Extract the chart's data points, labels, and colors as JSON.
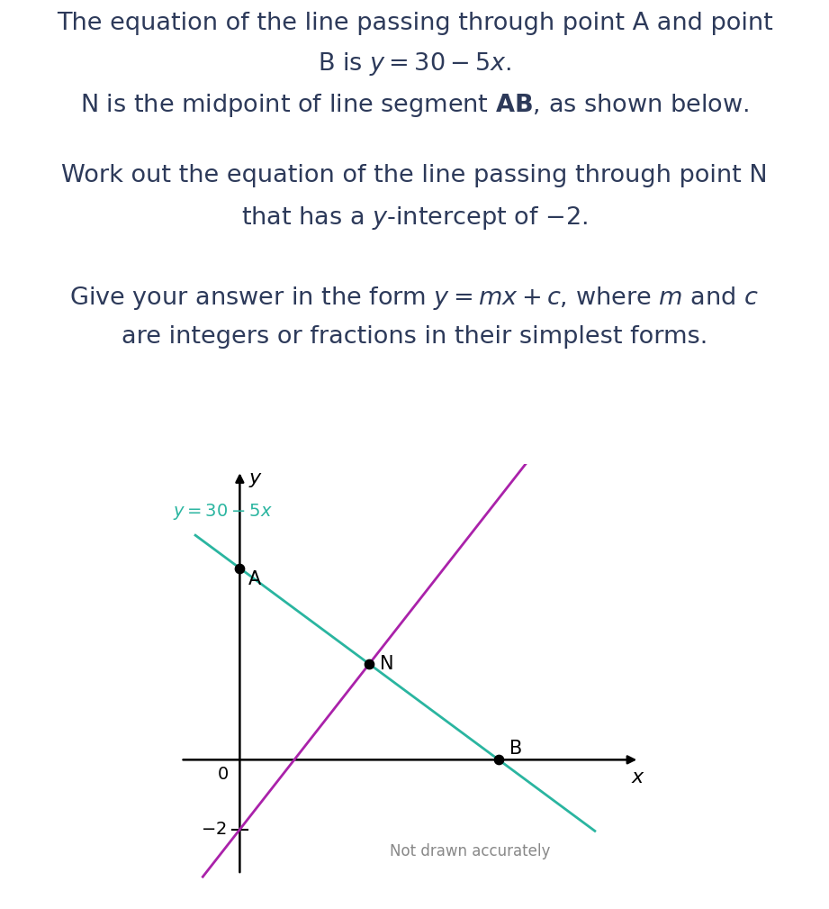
{
  "bg_color": "#ffffff",
  "text_color": "#2d3a5a",
  "teal_color": "#2ab5a0",
  "purple_color": "#aa22aa",
  "black_color": "#000000",
  "gray_color": "#888888",
  "not_drawn_label": "Not drawn accurately",
  "point_A": [
    0,
    5.5
  ],
  "point_B": [
    3.5,
    0
  ],
  "point_N": [
    1.75,
    2.75
  ],
  "xlim": [
    -1.0,
    5.5
  ],
  "ylim": [
    -3.5,
    8.5
  ]
}
